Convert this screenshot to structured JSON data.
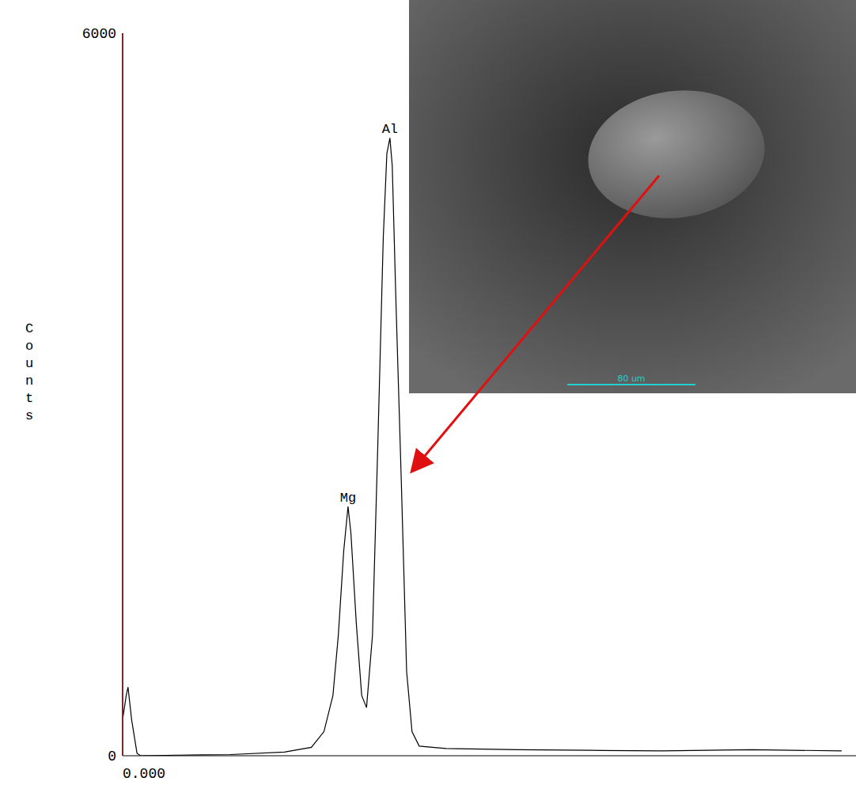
{
  "chart_data": {
    "type": "line",
    "y_label": "Counts",
    "color": "#000000",
    "grid": false,
    "x": [
      0,
      0.02,
      0.03,
      0.05,
      0.08,
      0.1,
      0.3,
      0.6,
      0.9,
      1.05,
      1.12,
      1.17,
      1.2,
      1.23,
      1.254,
      1.27,
      1.3,
      1.33,
      1.357,
      1.39,
      1.42,
      1.45,
      1.47,
      1.487,
      1.5,
      1.52,
      1.55,
      1.58,
      1.61,
      1.65,
      1.8,
      2.2,
      2.6,
      3.0,
      3.5,
      4.0
    ],
    "values": [
      300,
      500,
      570,
      300,
      20,
      0,
      5,
      10,
      30,
      70,
      200,
      500,
      1000,
      1700,
      2070,
      1850,
      1100,
      500,
      400,
      1000,
      2600,
      4300,
      5000,
      5130,
      4900,
      3800,
      2300,
      700,
      200,
      80,
      60,
      50,
      45,
      40,
      50,
      40
    ],
    "xlim": [
      0,
      4.08
    ],
    "xticks": [
      {
        "value": 0,
        "label": "0.000"
      }
    ],
    "ylim": [
      0,
      6000
    ],
    "yticks": [
      0,
      6000
    ],
    "annotations": [
      {
        "text": "Mg",
        "x": 1.254,
        "y": 2070
      },
      {
        "text": "Al",
        "x": 1.487,
        "y": 5130
      }
    ],
    "inset": {
      "scale_bar": "80 um"
    }
  }
}
